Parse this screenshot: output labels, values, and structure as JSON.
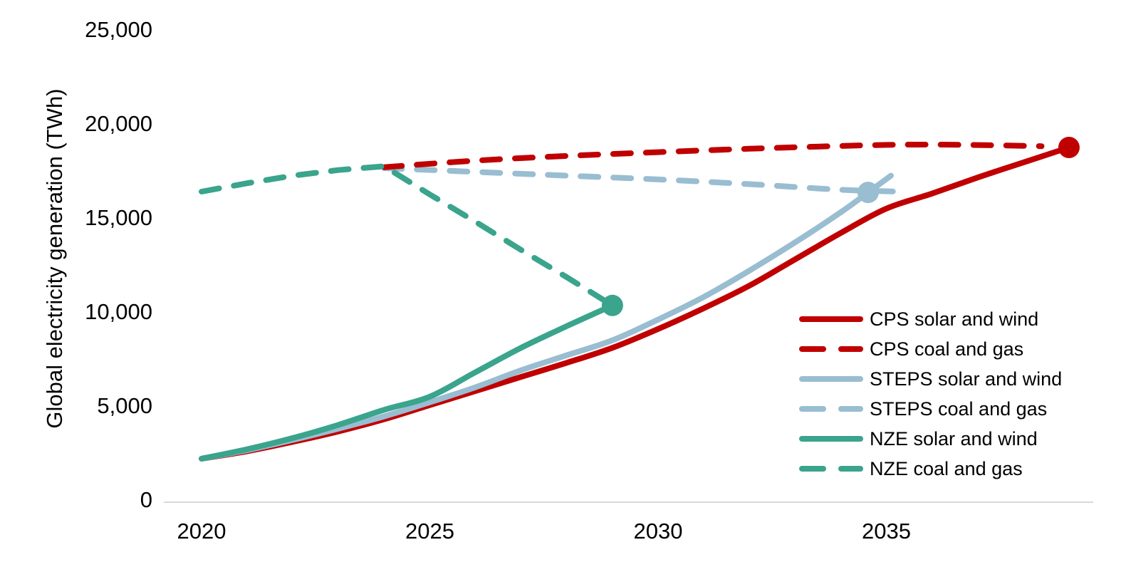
{
  "chart_data": {
    "type": "line",
    "title": "",
    "xlabel": "",
    "ylabel": "Global electricity generation (TWh)",
    "xlim": [
      2019.2,
      2039.5
    ],
    "ylim": [
      0,
      25000
    ],
    "grid": false,
    "background": "#FFFFFF",
    "text_color": "#000000",
    "axis_line_color": "#D9D9D9",
    "legend_position": "inside-right-middle",
    "xticks": [
      {
        "value": 2020,
        "label": "2020"
      },
      {
        "value": 2025,
        "label": "2025"
      },
      {
        "value": 2030,
        "label": "2030"
      },
      {
        "value": 2035,
        "label": "2035"
      }
    ],
    "yticks": [
      {
        "value": 0,
        "label": "0"
      },
      {
        "value": 5000,
        "label": "5,000"
      },
      {
        "value": 10000,
        "label": "10,000"
      },
      {
        "value": 15000,
        "label": "15,000"
      },
      {
        "value": 20000,
        "label": "20,000"
      },
      {
        "value": 25000,
        "label": "25,000"
      }
    ],
    "series": [
      {
        "name": "CPS solar and wind",
        "color": "#C00000",
        "line_style": "solid",
        "smooth": true,
        "points": [
          [
            2020,
            2200
          ],
          [
            2021,
            2600
          ],
          [
            2022,
            3100
          ],
          [
            2023,
            3650
          ],
          [
            2024,
            4300
          ],
          [
            2025,
            5050
          ],
          [
            2026,
            5800
          ],
          [
            2027,
            6550
          ],
          [
            2028,
            7300
          ],
          [
            2029,
            8100
          ],
          [
            2030,
            9100
          ],
          [
            2031,
            10200
          ],
          [
            2032,
            11400
          ],
          [
            2033,
            12800
          ],
          [
            2034,
            14200
          ],
          [
            2035,
            15500
          ],
          [
            2036,
            16300
          ],
          [
            2037,
            17150
          ],
          [
            2038,
            17950
          ],
          [
            2039,
            18750
          ]
        ]
      },
      {
        "name": "CPS coal and gas",
        "color": "#C00000",
        "line_style": "dashed",
        "smooth": true,
        "points": [
          [
            2024,
            17700
          ],
          [
            2026,
            18050
          ],
          [
            2028,
            18300
          ],
          [
            2030,
            18500
          ],
          [
            2032,
            18680
          ],
          [
            2034,
            18830
          ],
          [
            2035.5,
            18900
          ],
          [
            2037,
            18880
          ],
          [
            2038.4,
            18820
          ]
        ]
      },
      {
        "name": "STEPS solar and wind",
        "color": "#99BDD1",
        "line_style": "solid",
        "smooth": true,
        "points": [
          [
            2020,
            2200
          ],
          [
            2021,
            2650
          ],
          [
            2022,
            3200
          ],
          [
            2023,
            3800
          ],
          [
            2024,
            4450
          ],
          [
            2025,
            5200
          ],
          [
            2026,
            6000
          ],
          [
            2027,
            6900
          ],
          [
            2028,
            7700
          ],
          [
            2029,
            8500
          ],
          [
            2030,
            9600
          ],
          [
            2031,
            10800
          ],
          [
            2032,
            12200
          ],
          [
            2033,
            13700
          ],
          [
            2034,
            15300
          ],
          [
            2034.6,
            16360
          ],
          [
            2035.1,
            17250
          ]
        ]
      },
      {
        "name": "STEPS coal and gas",
        "color": "#99BDD1",
        "line_style": "dashed",
        "smooth": true,
        "points": [
          [
            2024,
            17650
          ],
          [
            2026,
            17450
          ],
          [
            2028,
            17250
          ],
          [
            2030,
            17050
          ],
          [
            2032,
            16800
          ],
          [
            2034,
            16500
          ],
          [
            2035.3,
            16400
          ]
        ]
      },
      {
        "name": "NZE solar and wind",
        "color": "#3AA48D",
        "line_style": "solid",
        "smooth": true,
        "points": [
          [
            2020,
            2200
          ],
          [
            2021,
            2700
          ],
          [
            2022,
            3300
          ],
          [
            2023,
            4000
          ],
          [
            2024,
            4800
          ],
          [
            2025,
            5500
          ],
          [
            2026,
            6800
          ],
          [
            2027,
            8100
          ],
          [
            2028,
            9250
          ],
          [
            2029,
            10350
          ]
        ]
      },
      {
        "name": "NZE coal and gas",
        "color": "#3AA48D",
        "line_style": "dashed",
        "smooth": false,
        "points": [
          [
            2020,
            16400
          ],
          [
            2021,
            16850
          ],
          [
            2022,
            17250
          ],
          [
            2023,
            17550
          ],
          [
            2024,
            17750
          ],
          [
            2025,
            16250
          ],
          [
            2026,
            14800
          ],
          [
            2027,
            13300
          ],
          [
            2028,
            11850
          ],
          [
            2029,
            10350
          ]
        ]
      }
    ],
    "markers": [
      {
        "series": "NZE crossover",
        "x": 2029,
        "y": 10350,
        "color": "#3AA48D"
      },
      {
        "series": "STEPS crossover",
        "x": 2034.6,
        "y": 16360,
        "color": "#99BDD1"
      },
      {
        "series": "CPS crossover",
        "x": 2039,
        "y": 18750,
        "color": "#C00000"
      }
    ]
  }
}
